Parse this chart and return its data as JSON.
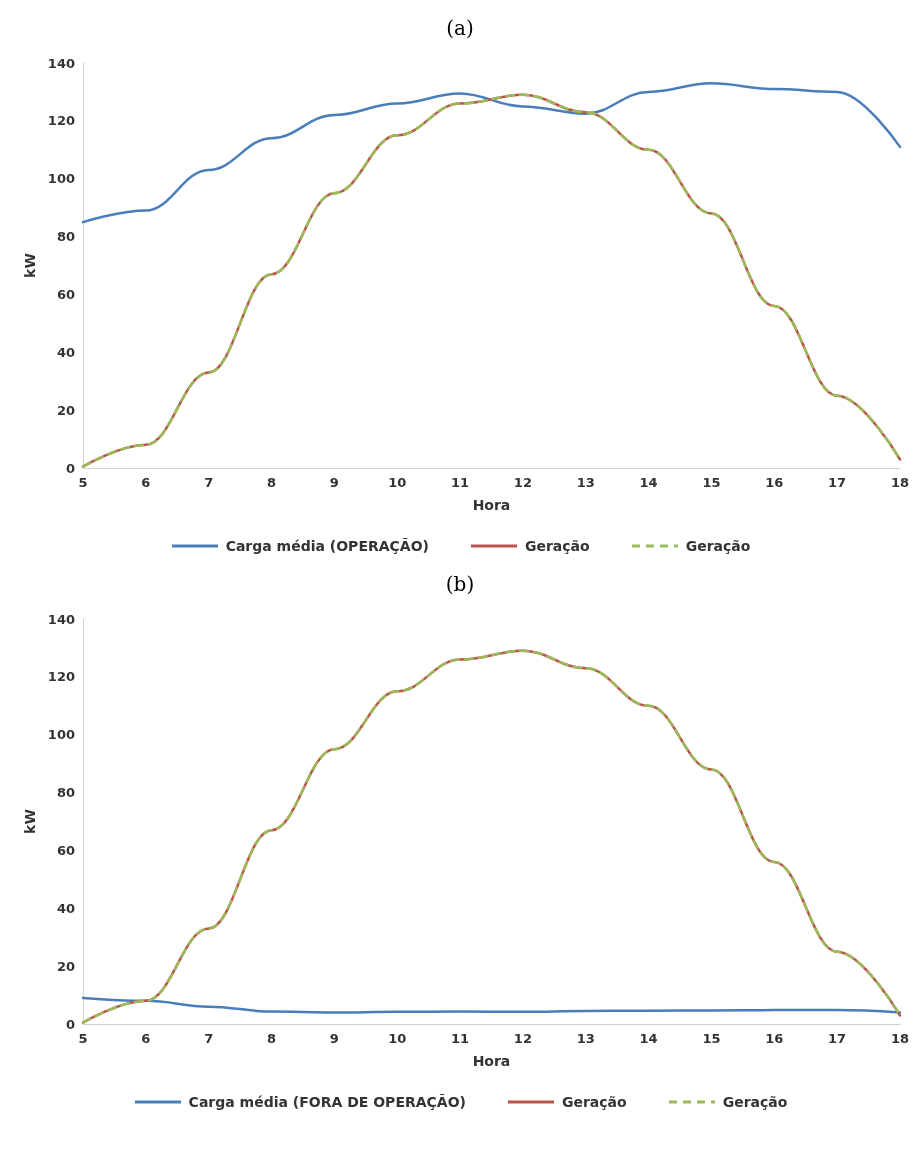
{
  "chart_data": [
    {
      "type": "line",
      "title": "(a)",
      "xlabel": "Hora",
      "ylabel": "kW",
      "x": [
        5,
        6,
        7,
        8,
        9,
        10,
        11,
        12,
        13,
        14,
        15,
        16,
        17,
        18
      ],
      "xlim": [
        5,
        18
      ],
      "xticks": [
        5,
        6,
        7,
        8,
        9,
        10,
        11,
        12,
        13,
        14,
        15,
        16,
        17,
        18
      ],
      "ylim": [
        0,
        140
      ],
      "yticks": [
        0,
        20,
        40,
        60,
        80,
        100,
        120,
        140
      ],
      "grid": false,
      "legend": "bottom",
      "marker": "none",
      "series": [
        {
          "name": "Carga média (OPERAÇÃO)",
          "color": "#4a7ebb",
          "line_style": "solid",
          "values": [
            85,
            89,
            103,
            114,
            122,
            126,
            129.5,
            125,
            122.5,
            130,
            133,
            131,
            130,
            111
          ]
        },
        {
          "name": "Geração",
          "color": "#c0504d",
          "line_style": "solid",
          "values": [
            0.5,
            8,
            33,
            67,
            95,
            115,
            126,
            129,
            123,
            110,
            88,
            56,
            25,
            3
          ]
        },
        {
          "name": "Geração",
          "color": "#9bbb59",
          "line_style": "dashed",
          "values": [
            0.5,
            8,
            33,
            67,
            95,
            115,
            126,
            129,
            123,
            110,
            88,
            56,
            25,
            3
          ]
        }
      ]
    },
    {
      "type": "line",
      "title": "(b)",
      "xlabel": "Hora",
      "ylabel": "kW",
      "x": [
        5,
        6,
        7,
        8,
        9,
        10,
        11,
        12,
        13,
        14,
        15,
        16,
        17,
        18
      ],
      "xlim": [
        5,
        18
      ],
      "xticks": [
        5,
        6,
        7,
        8,
        9,
        10,
        11,
        12,
        13,
        14,
        15,
        16,
        17,
        18
      ],
      "ylim": [
        0,
        140
      ],
      "yticks": [
        0,
        20,
        40,
        60,
        80,
        100,
        120,
        140
      ],
      "grid": false,
      "legend": "bottom",
      "marker": "none",
      "series": [
        {
          "name": "Carga média (FORA DE OPERAÇÃO)",
          "color": "#4a7ebb",
          "line_style": "solid",
          "values": [
            9,
            8,
            6,
            4.3,
            4,
            4.2,
            4.3,
            4.2,
            4.5,
            4.6,
            4.7,
            4.8,
            4.8,
            4
          ]
        },
        {
          "name": "Geração",
          "color": "#c0504d",
          "line_style": "solid",
          "values": [
            0.5,
            8,
            33,
            67,
            95,
            115,
            126,
            129,
            123,
            110,
            88,
            56,
            25,
            3
          ]
        },
        {
          "name": "Geração",
          "color": "#9bbb59",
          "line_style": "dashed",
          "values": [
            0.5,
            8,
            33,
            67,
            95,
            115,
            126,
            129,
            123,
            110,
            88,
            56,
            25,
            3
          ]
        }
      ]
    }
  ]
}
